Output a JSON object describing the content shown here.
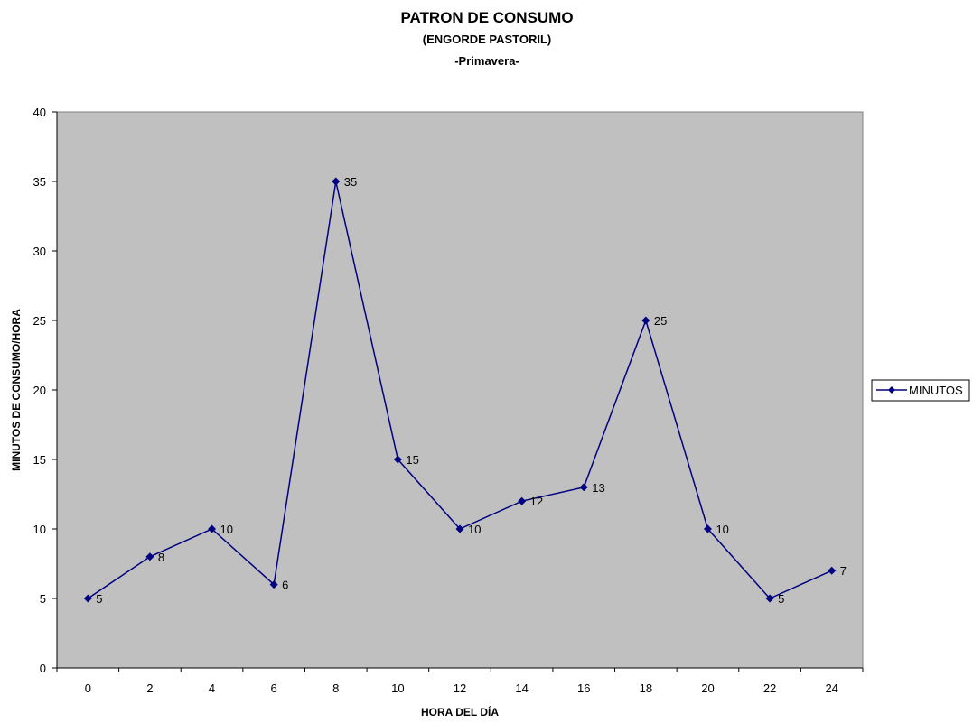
{
  "chart_data": {
    "type": "line",
    "title": "PATRON DE CONSUMO",
    "subtitle": "(ENGORDE  PASTORIL)",
    "subtitle2": "-Primavera-",
    "xlabel": "HORA DEL DÍA",
    "ylabel": "MINUTOS DE CONSUMO/HORA",
    "categories": [
      "0",
      "2",
      "4",
      "6",
      "8",
      "10",
      "12",
      "14",
      "16",
      "18",
      "20",
      "22",
      "24"
    ],
    "series": [
      {
        "name": "MINUTOS",
        "values": [
          5,
          8,
          10,
          6,
          35,
          15,
          10,
          12,
          13,
          25,
          10,
          5,
          7
        ]
      }
    ],
    "ylim": [
      0,
      40
    ],
    "yticks": [
      0,
      5,
      10,
      15,
      20,
      25,
      30,
      35,
      40
    ],
    "grid": false,
    "legend_position": "right",
    "colors": {
      "series": "#000080",
      "plot_background": "#c0c0c0",
      "axis": "#000000"
    },
    "marker": "diamond"
  }
}
